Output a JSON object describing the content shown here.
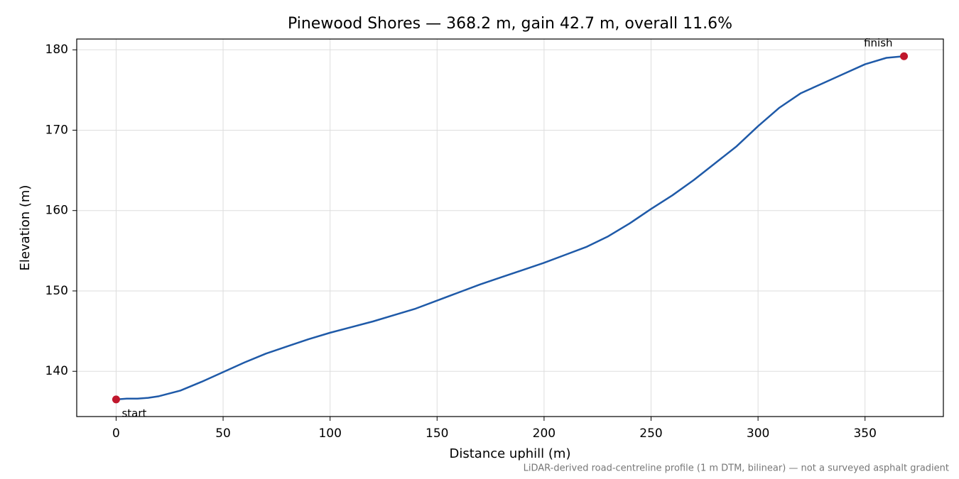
{
  "chart_data": {
    "type": "line",
    "title": "Pinewood Shores — 368.2 m, gain 42.7 m, overall 11.6%",
    "x_label": "Distance uphill (m)",
    "y_label": "Elevation (m)",
    "footnote": "LiDAR-derived road-centreline profile (1 m DTM, bilinear) — not a surveyed asphalt gradient",
    "x": [
      0,
      5,
      10,
      15,
      20,
      30,
      40,
      50,
      60,
      70,
      80,
      90,
      100,
      110,
      120,
      130,
      140,
      150,
      160,
      170,
      180,
      190,
      200,
      210,
      220,
      230,
      240,
      250,
      260,
      270,
      280,
      290,
      300,
      310,
      320,
      330,
      340,
      350,
      360,
      368.2
    ],
    "series": [
      {
        "color": "#1f5aa8",
        "values": [
          136.5,
          136.6,
          136.6,
          136.7,
          136.9,
          137.6,
          138.7,
          139.9,
          141.1,
          142.2,
          143.1,
          144.0,
          144.8,
          145.5,
          146.2,
          147.0,
          147.8,
          148.8,
          149.8,
          150.8,
          151.7,
          152.6,
          153.5,
          154.5,
          155.5,
          156.8,
          158.4,
          160.2,
          161.9,
          163.8,
          165.9,
          168.0,
          170.5,
          172.8,
          174.6,
          175.8,
          177.0,
          178.2,
          179.0,
          179.2
        ]
      }
    ],
    "endpoint_color": "#c0172c",
    "annotations": [
      "start",
      "finish"
    ],
    "xlim": [
      -18.41,
      386.61
    ],
    "ylim": [
      134.37,
      181.34
    ],
    "xticks": [
      0,
      50,
      100,
      150,
      200,
      250,
      300,
      350
    ],
    "yticks": [
      140,
      150,
      160,
      170,
      180
    ],
    "grid": true
  }
}
